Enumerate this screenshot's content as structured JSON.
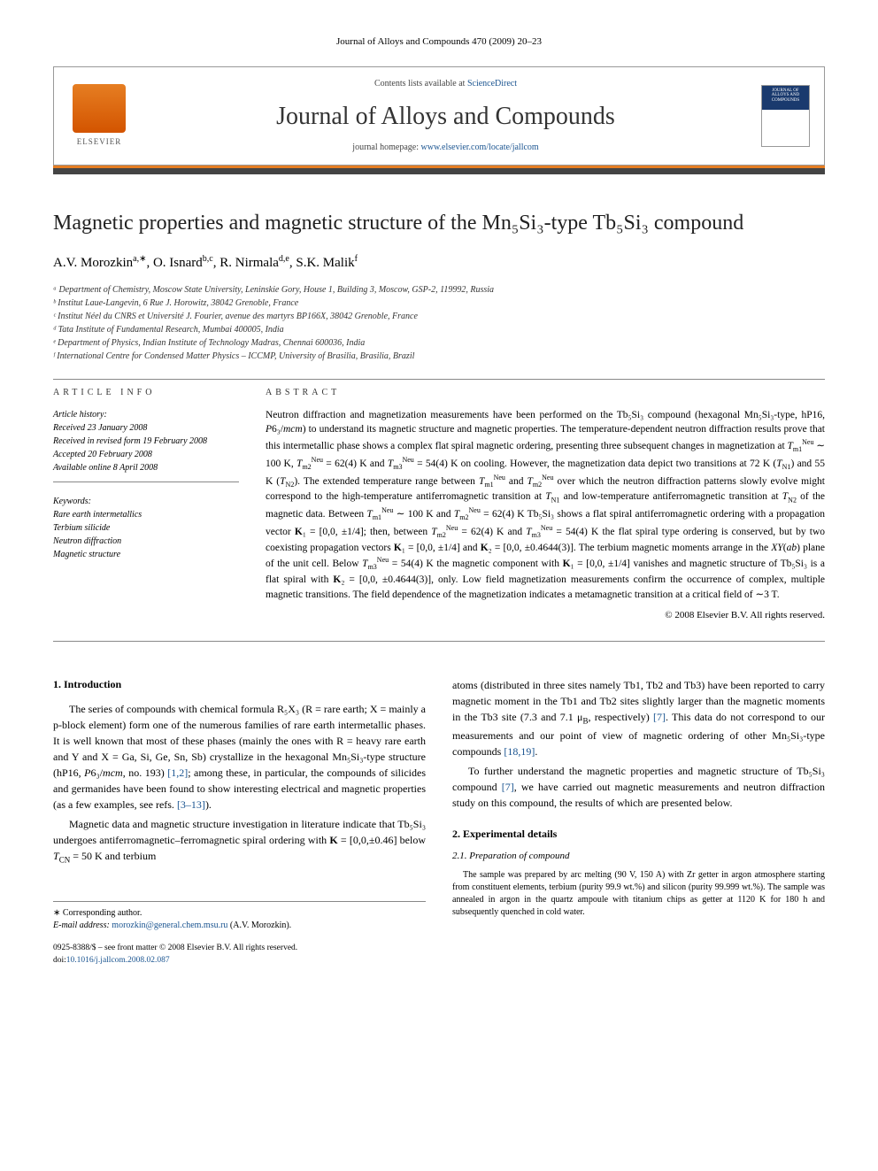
{
  "page_header": "Journal of Alloys and Compounds 470 (2009) 20–23",
  "masthead": {
    "contents_prefix": "Contents lists available at ",
    "sd_link_text": "ScienceDirect",
    "journal_name": "Journal of Alloys and Compounds",
    "homepage_prefix": "journal homepage: ",
    "homepage_url": "www.elsevier.com/locate/jallcom",
    "elsevier_label": "ELSEVIER",
    "cover_label": "JOURNAL OF ALLOYS AND COMPOUNDS"
  },
  "title": "Magnetic properties and magnetic structure of the Mn₅Si₃-type Tb₅Si₃ compound",
  "authors_html": "A.V. Morozkin<sup>a,∗</sup>, O. Isnard<sup>b,c</sup>, R. Nirmala<sup>d,e</sup>, S.K. Malik<sup>f</sup>",
  "affiliations": [
    "ᵃ Department of Chemistry, Moscow State University, Leninskie Gory, House 1, Building 3, Moscow, GSP-2, 119992, Russia",
    "ᵇ Institut Laue-Langevin, 6 Rue J. Horowitz, 38042 Grenoble, France",
    "ᶜ Institut Néel du CNRS et Université J. Fourier, avenue des martyrs BP166X, 38042 Grenoble, France",
    "ᵈ Tata Institute of Fundamental Research, Mumbai 400005, India",
    "ᵉ Department of Physics, Indian Institute of Technology Madras, Chennai 600036, India",
    "ᶠ International Centre for Condensed Matter Physics – ICCMP, University of Brasilia, Brasilia, Brazil"
  ],
  "info_head": "ARTICLE INFO",
  "abstract_head": "ABSTRACT",
  "history": {
    "label": "Article history:",
    "lines": [
      "Received 23 January 2008",
      "Received in revised form 19 February 2008",
      "Accepted 20 February 2008",
      "Available online 8 April 2008"
    ]
  },
  "keywords": {
    "label": "Keywords:",
    "items": [
      "Rare earth intermetallics",
      "Terbium silicide",
      "Neutron diffraction",
      "Magnetic structure"
    ]
  },
  "abstract_html": "Neutron diffraction and magnetization measurements have been performed on the Tb₅Si₃ compound (hexagonal Mn₅Si₃-type, hP16, <i>P</i>6₃/<i>mcm</i>) to understand its magnetic structure and magnetic properties. The temperature-dependent neutron diffraction results prove that this intermetallic phase shows a complex flat spiral magnetic ordering, presenting three subsequent changes in magnetization at <i>T</i><sub>m1</sub><sup>Neu</sup> ∼ 100 K, <i>T</i><sub>m2</sub><sup>Neu</sup> = 62(4) K and <i>T</i><sub>m3</sub><sup>Neu</sup> = 54(4) K on cooling. However, the magnetization data depict two transitions at 72 K (<i>T</i><sub>N1</sub>) and 55 K (<i>T</i><sub>N2</sub>). The extended temperature range between <i>T</i><sub>m1</sub><sup>Neu</sup> and <i>T</i><sub>m2</sub><sup>Neu</sup> over which the neutron diffraction patterns slowly evolve might correspond to the high-temperature antiferromagnetic transition at <i>T</i><sub>N1</sub> and low-temperature antiferromagnetic transition at <i>T</i><sub>N2</sub> of the magnetic data. Between <i>T</i><sub>m1</sub><sup>Neu</sup> ∼ 100 K and <i>T</i><sub>m2</sub><sup>Neu</sup> = 62(4) K Tb₅Si₃ shows a flat spiral antiferromagnetic ordering with a propagation vector <b>K</b>₁ = [0,0, ±1/4]; then, between <i>T</i><sub>m2</sub><sup>Neu</sup> = 62(4) K and <i>T</i><sub>m3</sub><sup>Neu</sup> = 54(4) K the flat spiral type ordering is conserved, but by two coexisting propagation vectors <b>K</b>₁ = [0,0, ±1/4] and <b>K</b>₂ = [0,0, ±0.4644(3)]. The terbium magnetic moments arrange in the <i>XY</i>(<i>ab</i>) plane of the unit cell. Below <i>T</i><sub>m3</sub><sup>Neu</sup> = 54(4) K the magnetic component with <b>K</b>₁ = [0,0, ±1/4] vanishes and magnetic structure of Tb₅Si₃ is a flat spiral with <b>K</b>₂ = [0,0, ±0.4644(3)], only. Low field magnetization measurements confirm the occurrence of complex, multiple magnetic transitions. The field dependence of the magnetization indicates a metamagnetic transition at a critical field of ∼3 T.",
  "copyright": "© 2008 Elsevier B.V. All rights reserved.",
  "body": {
    "left": {
      "sec1_head": "1. Introduction",
      "p1_html": "The series of compounds with chemical formula R₅X₃ (R = rare earth; X = mainly a p-block element) form one of the numerous families of rare earth intermetallic phases. It is well known that most of these phases (mainly the ones with R = heavy rare earth and Y and X = Ga, Si, Ge, Sn, Sb) crystallize in the hexagonal Mn₅Si₃-type structure (hP16, <i>P</i>6₃/<i>mcm</i>, no. 193) <span class=\"ref-link\">[1,2]</span>; among these, in particular, the compounds of silicides and germanides have been found to show interesting electrical and magnetic properties (as a few examples, see refs. <span class=\"ref-link\">[3–13]</span>).",
      "p2_html": "Magnetic data and magnetic structure investigation in literature indicate that Tb₅Si₃ undergoes antiferromagnetic–ferromagnetic spiral ordering with <b>K</b> = [0,0,±0.46] below <i>T</i><sub>CN</sub> = 50 K and terbium"
    },
    "right": {
      "p1_html": "atoms (distributed in three sites namely Tb1, Tb2 and Tb3) have been reported to carry magnetic moment in the Tb1 and Tb2 sites slightly larger than the magnetic moments in the Tb3 site (7.3 and 7.1 μ<sub>B</sub>, respectively) <span class=\"ref-link\">[7]</span>. This data do not correspond to our measurements and our point of view of magnetic ordering of other Mn₅Si₃-type compounds <span class=\"ref-link\">[18,19]</span>.",
      "p2_html": "To further understand the magnetic properties and magnetic structure of Tb₅Si₃ compound <span class=\"ref-link\">[7]</span>, we have carried out magnetic measurements and neutron diffraction study on this compound, the results of which are presented below.",
      "sec2_head": "2. Experimental details",
      "sec21_head": "2.1. Preparation of compound",
      "p3_html": "The sample was prepared by arc melting (90 V, 150 A) with Zr getter in argon atmosphere starting from constituent elements, terbium (purity 99.9 wt.%) and silicon (purity 99.999 wt.%). The sample was annealed in argon in the quartz ampoule with titanium chips as getter at 1120 K for 180 h and subsequently quenched in cold water."
    }
  },
  "footnote": {
    "corr": "∗ Corresponding author.",
    "email_label": "E-mail address: ",
    "email": "morozkin@general.chem.msu.ru",
    "email_name": " (A.V. Morozkin)."
  },
  "front_matter": {
    "line1": "0925-8388/$ – see front matter © 2008 Elsevier B.V. All rights reserved.",
    "doi_prefix": "doi:",
    "doi": "10.1016/j.jallcom.2008.02.087"
  },
  "colors": {
    "accent_orange": "#e67e22",
    "link_blue": "#1a5490",
    "bar_dark": "#444444"
  }
}
